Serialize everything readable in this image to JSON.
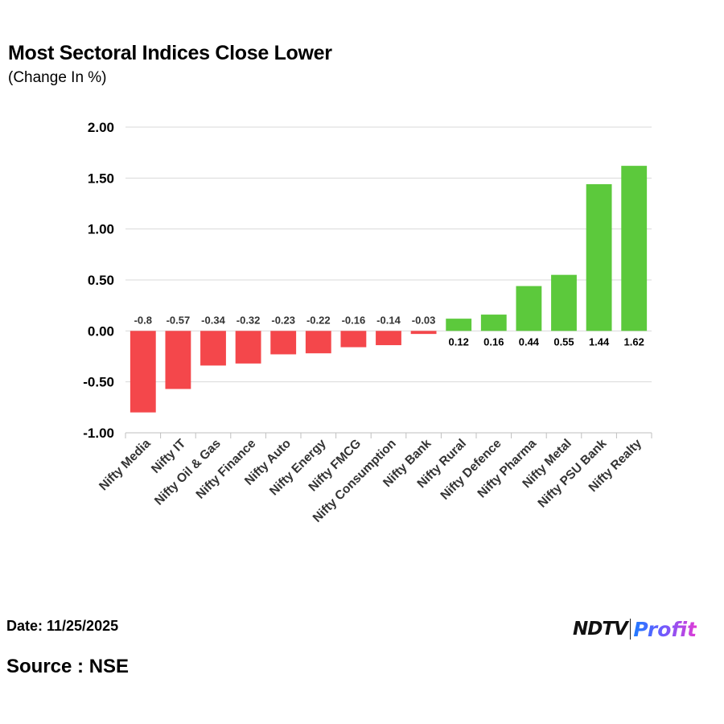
{
  "chart_data": {
    "type": "bar",
    "title": "Most Sectoral Indices Close Lower",
    "subtitle": "(Change In %)",
    "categories": [
      "Nifty Media",
      "Nifty IT",
      "Nifty Oil & Gas",
      "Nifty Finance",
      "Nifty Auto",
      "Nifty Energy",
      "Nifty FMCG",
      "Nifty Consumption",
      "Nifty Bank",
      "Nifty Rural",
      "Nifty Defence",
      "Nifty Pharma",
      "Nifty Metal",
      "Nifty PSU Bank",
      "Nifty Realty"
    ],
    "values": [
      -0.8,
      -0.57,
      -0.34,
      -0.32,
      -0.23,
      -0.22,
      -0.16,
      -0.14,
      -0.03,
      0.12,
      0.16,
      0.44,
      0.55,
      1.44,
      1.62
    ],
    "data_labels": [
      "-0.8",
      "-0.57",
      "-0.34",
      "-0.32",
      "-0.23",
      "-0.22",
      "-0.16",
      "-0.14",
      "-0.03",
      "0.12",
      "0.16",
      "0.44",
      "0.55",
      "1.44",
      "1.62"
    ],
    "ylim": [
      -1.0,
      2.0
    ],
    "yticks": [
      2.0,
      1.5,
      1.0,
      0.5,
      0.0,
      -0.5,
      -1.0
    ],
    "ytick_labels": [
      "2.00",
      "1.50",
      "1.00",
      "0.50",
      "0.00",
      "-0.50",
      "-1.00"
    ],
    "grid": true,
    "colors": {
      "negative": "#f4474b",
      "positive": "#5cc93c",
      "grid": "#d9d9d9",
      "axis": "#bfbfbf",
      "label": "#333333"
    }
  },
  "footer": {
    "date": "Date: 11/25/2025",
    "source": "Source : NSE"
  },
  "brand": {
    "ndtv": "NDTV",
    "profit": "Profit"
  }
}
